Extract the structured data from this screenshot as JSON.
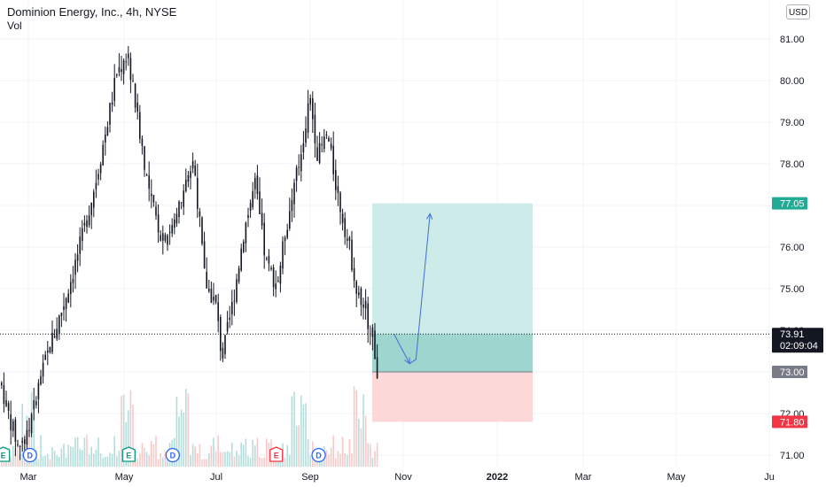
{
  "header": {
    "title": "Dominion Energy, Inc., 4h, NYSE",
    "volume_label": "Vol",
    "currency_button": "USD"
  },
  "colors": {
    "candle": "#131722",
    "profit_zone": "#cdebe8",
    "profit_overlap": "#9fd5cf",
    "loss_zone": "#fdd8d8",
    "arrow": "#3f6fd6",
    "tag_target": "#22ab94",
    "tag_current": "#131722",
    "tag_entry": "#787b86",
    "tag_stop": "#f23645",
    "volume_up": "#b2dfdb",
    "volume_down": "#f7c9c9"
  },
  "chart_data": {
    "type": "candlestick",
    "title": "Dominion Energy, Inc., 4h, NYSE",
    "y_axis": {
      "ticks": [
        "81.00",
        "80.00",
        "79.00",
        "78.00",
        "77.00",
        "76.00",
        "75.00",
        "74.00",
        "73.00",
        "72.00",
        "71.00"
      ],
      "range": [
        70.7,
        81.7
      ]
    },
    "x_axis": {
      "ticks": [
        {
          "label": "Mar",
          "bold": false
        },
        {
          "label": "May",
          "bold": false
        },
        {
          "label": "Jul",
          "bold": false
        },
        {
          "label": "Sep",
          "bold": false
        },
        {
          "label": "Nov",
          "bold": false
        },
        {
          "label": "2022",
          "bold": true
        },
        {
          "label": "Mar",
          "bold": false
        },
        {
          "label": "May",
          "bold": false
        },
        {
          "label": "Ju",
          "bold": false
        }
      ]
    },
    "price_path": [
      [
        "Feb 1",
        73.9
      ],
      [
        "Feb 8",
        73.2
      ],
      [
        "Feb 15",
        72.1
      ],
      [
        "Feb 22",
        71.2
      ],
      [
        "Mar 1",
        71.6
      ],
      [
        "Mar 8",
        72.8
      ],
      [
        "Mar 15",
        73.7
      ],
      [
        "Mar 22",
        74.5
      ],
      [
        "Mar 29",
        75.4
      ],
      [
        "Apr 5",
        76.4
      ],
      [
        "Apr 12",
        77.5
      ],
      [
        "Apr 19",
        78.8
      ],
      [
        "Apr 26",
        80.2
      ],
      [
        "May 3",
        80.6
      ],
      [
        "May 10",
        78.9
      ],
      [
        "May 17",
        77.2
      ],
      [
        "May 24",
        76.3
      ],
      [
        "May 31",
        76.4
      ],
      [
        "Jun 7",
        77.3
      ],
      [
        "Jun 14",
        78.1
      ],
      [
        "Jun 21",
        75.2
      ],
      [
        "Jun 28",
        74.6
      ],
      [
        "Jul 2",
        73.3
      ],
      [
        "Jul 9",
        74.7
      ],
      [
        "Jul 16",
        76.4
      ],
      [
        "Jul 23",
        77.5
      ],
      [
        "Jul 30",
        75.6
      ],
      [
        "Aug 6",
        75.1
      ],
      [
        "Aug 13",
        76.7
      ],
      [
        "Aug 20",
        78.0
      ],
      [
        "Aug 27",
        79.6
      ],
      [
        "Sep 1",
        78.2
      ],
      [
        "Sep 7",
        78.7
      ],
      [
        "Sep 14",
        77.2
      ],
      [
        "Sep 21",
        76.0
      ],
      [
        "Sep 28",
        74.6
      ],
      [
        "Oct 5",
        74.1
      ],
      [
        "Oct 8",
        73.3
      ],
      [
        "Oct 12",
        72.2
      ],
      [
        "Oct 15",
        73.0
      ],
      [
        "Oct 19",
        73.91
      ]
    ],
    "volume_spikes": [
      "Mar 1",
      "May 3",
      "Jun 7",
      "Aug 20",
      "Sep 28"
    ],
    "current_price": {
      "value": "73.91",
      "countdown": "02:09:04"
    },
    "position": {
      "type": "long",
      "start": "Oct 21",
      "end": "Dec 25",
      "entry": 73.0,
      "target": 77.05,
      "stop": 71.8,
      "labels": {
        "target": "77.05",
        "entry": "73.00",
        "stop": "71.80"
      }
    },
    "projection": [
      [
        "Oct 20",
        73.91
      ],
      [
        "Oct 30",
        73.2
      ],
      [
        "Nov 3",
        73.3
      ],
      [
        "Nov 12",
        76.8
      ]
    ],
    "events": [
      {
        "type": "earnings",
        "label": "E",
        "date": "Feb 13",
        "color": "#089981"
      },
      {
        "type": "dividend",
        "label": "D",
        "date": "Mar 2",
        "color": "#2962ff"
      },
      {
        "type": "earnings",
        "label": "E",
        "date": "May 4",
        "color": "#089981"
      },
      {
        "type": "dividend",
        "label": "D",
        "date": "Jun 1",
        "color": "#2962ff"
      },
      {
        "type": "earnings",
        "label": "E",
        "date": "Aug 6",
        "color": "#f23645"
      },
      {
        "type": "dividend",
        "label": "D",
        "date": "Sep 2",
        "color": "#2962ff"
      }
    ]
  }
}
